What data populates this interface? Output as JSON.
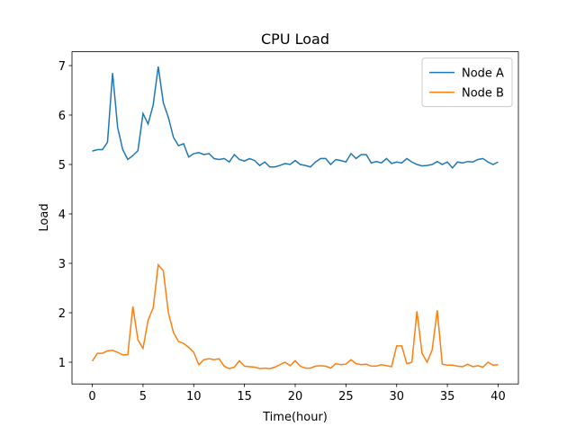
{
  "chart_data": {
    "type": "line",
    "title": "CPU Load",
    "xlabel": "Time(hour)",
    "ylabel": "Load",
    "x": [
      0,
      0.5,
      1,
      1.5,
      2,
      2.5,
      3,
      3.5,
      4,
      4.5,
      5,
      5.5,
      6,
      6.5,
      7,
      7.5,
      8,
      8.5,
      9,
      9.5,
      10,
      10.5,
      11,
      11.5,
      12,
      12.5,
      13,
      13.5,
      14,
      14.5,
      15,
      15.5,
      16,
      16.5,
      17,
      17.5,
      18,
      18.5,
      19,
      19.5,
      20,
      20.5,
      21,
      21.5,
      22,
      22.5,
      23,
      23.5,
      24,
      24.5,
      25,
      25.5,
      26,
      26.5,
      27,
      27.5,
      28,
      28.5,
      29,
      29.5,
      30,
      30.5,
      31,
      31.5,
      32,
      32.5,
      33,
      33.5,
      34,
      34.5,
      35,
      35.5,
      36,
      36.5,
      37,
      37.5,
      38,
      38.5,
      39,
      39.5,
      40
    ],
    "series": [
      {
        "name": "Node A",
        "color": "#1f77b4",
        "values": [
          5.27,
          5.3,
          5.3,
          5.45,
          6.85,
          5.75,
          5.3,
          5.1,
          5.18,
          5.28,
          6.03,
          5.82,
          6.2,
          6.98,
          6.25,
          5.95,
          5.55,
          5.38,
          5.42,
          5.15,
          5.22,
          5.24,
          5.2,
          5.22,
          5.12,
          5.1,
          5.12,
          5.05,
          5.2,
          5.1,
          5.07,
          5.12,
          5.08,
          4.98,
          5.05,
          4.95,
          4.95,
          4.98,
          5.02,
          5.0,
          5.08,
          5.0,
          4.98,
          4.95,
          5.05,
          5.12,
          5.12,
          5.0,
          5.1,
          5.08,
          5.05,
          5.22,
          5.12,
          5.2,
          5.2,
          5.03,
          5.06,
          5.03,
          5.12,
          5.02,
          5.05,
          5.03,
          5.12,
          5.05,
          5.0,
          4.97,
          4.98,
          5.0,
          5.06,
          5.0,
          5.05,
          4.93,
          5.05,
          5.03,
          5.06,
          5.05,
          5.1,
          5.12,
          5.05,
          5.0,
          5.05
        ]
      },
      {
        "name": "Node B",
        "color": "#ff7f0e",
        "values": [
          1.02,
          1.18,
          1.18,
          1.23,
          1.24,
          1.2,
          1.15,
          1.15,
          2.13,
          1.45,
          1.28,
          1.85,
          2.1,
          2.97,
          2.85,
          2.0,
          1.6,
          1.42,
          1.38,
          1.3,
          1.2,
          0.95,
          1.05,
          1.07,
          1.05,
          1.07,
          0.92,
          0.87,
          0.9,
          1.03,
          0.92,
          0.91,
          0.9,
          0.87,
          0.88,
          0.87,
          0.9,
          0.95,
          1.0,
          0.93,
          1.03,
          0.92,
          0.88,
          0.88,
          0.92,
          0.93,
          0.92,
          0.88,
          0.97,
          0.95,
          0.96,
          1.05,
          0.97,
          0.95,
          0.96,
          0.92,
          0.92,
          0.95,
          0.93,
          0.91,
          1.33,
          1.33,
          0.97,
          1.0,
          2.03,
          1.18,
          1.0,
          1.25,
          2.05,
          0.96,
          0.94,
          0.94,
          0.92,
          0.91,
          0.96,
          0.91,
          0.93,
          0.9,
          1.0,
          0.94,
          0.95
        ]
      }
    ],
    "xlim": [
      -2,
      42
    ],
    "xticks": [
      0,
      5,
      10,
      15,
      20,
      25,
      30,
      35,
      40
    ],
    "ylim": [
      0.56,
      7.28
    ],
    "yticks": [
      1,
      2,
      3,
      4,
      5,
      6,
      7
    ],
    "legend": "upper right"
  }
}
